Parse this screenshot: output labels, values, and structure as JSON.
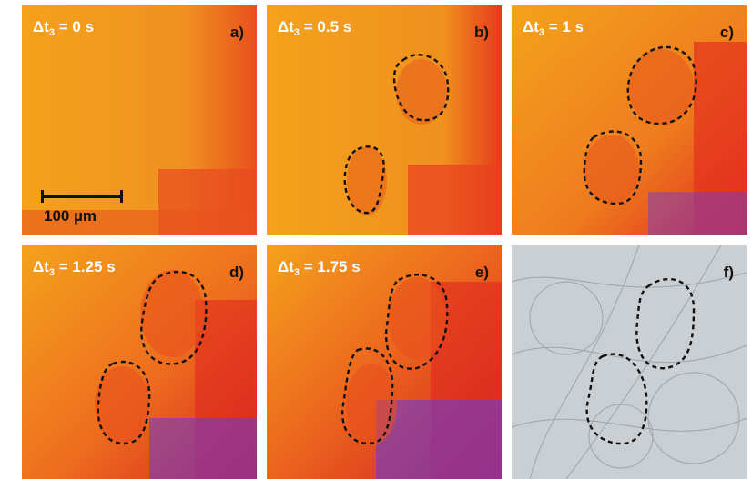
{
  "panels": [
    {
      "id": "a",
      "time_prefix": "Δt",
      "time_sub": "3",
      "time_value": " = 0 s",
      "letter": "a)"
    },
    {
      "id": "b",
      "time_prefix": "Δt",
      "time_sub": "3",
      "time_value": " = 0.5 s",
      "letter": "b)"
    },
    {
      "id": "c",
      "time_prefix": "Δt",
      "time_sub": "3",
      "time_value": " = 1 s",
      "letter": "c)"
    },
    {
      "id": "d",
      "time_prefix": "Δt",
      "time_sub": "3",
      "time_value": " = 1.25 s",
      "letter": "d)"
    },
    {
      "id": "e",
      "time_prefix": "Δt",
      "time_sub": "3",
      "time_value": " = 1.75 s",
      "letter": "e)"
    },
    {
      "id": "f",
      "letter": "f)"
    }
  ],
  "scale_bar": {
    "label": "100 µm"
  },
  "colors": {
    "thermal_base": "#f29a1a",
    "thermal_hot": "#e8341c",
    "thermal_peak": "#6a3bd6",
    "grey_bg": "#c9cfd2"
  }
}
